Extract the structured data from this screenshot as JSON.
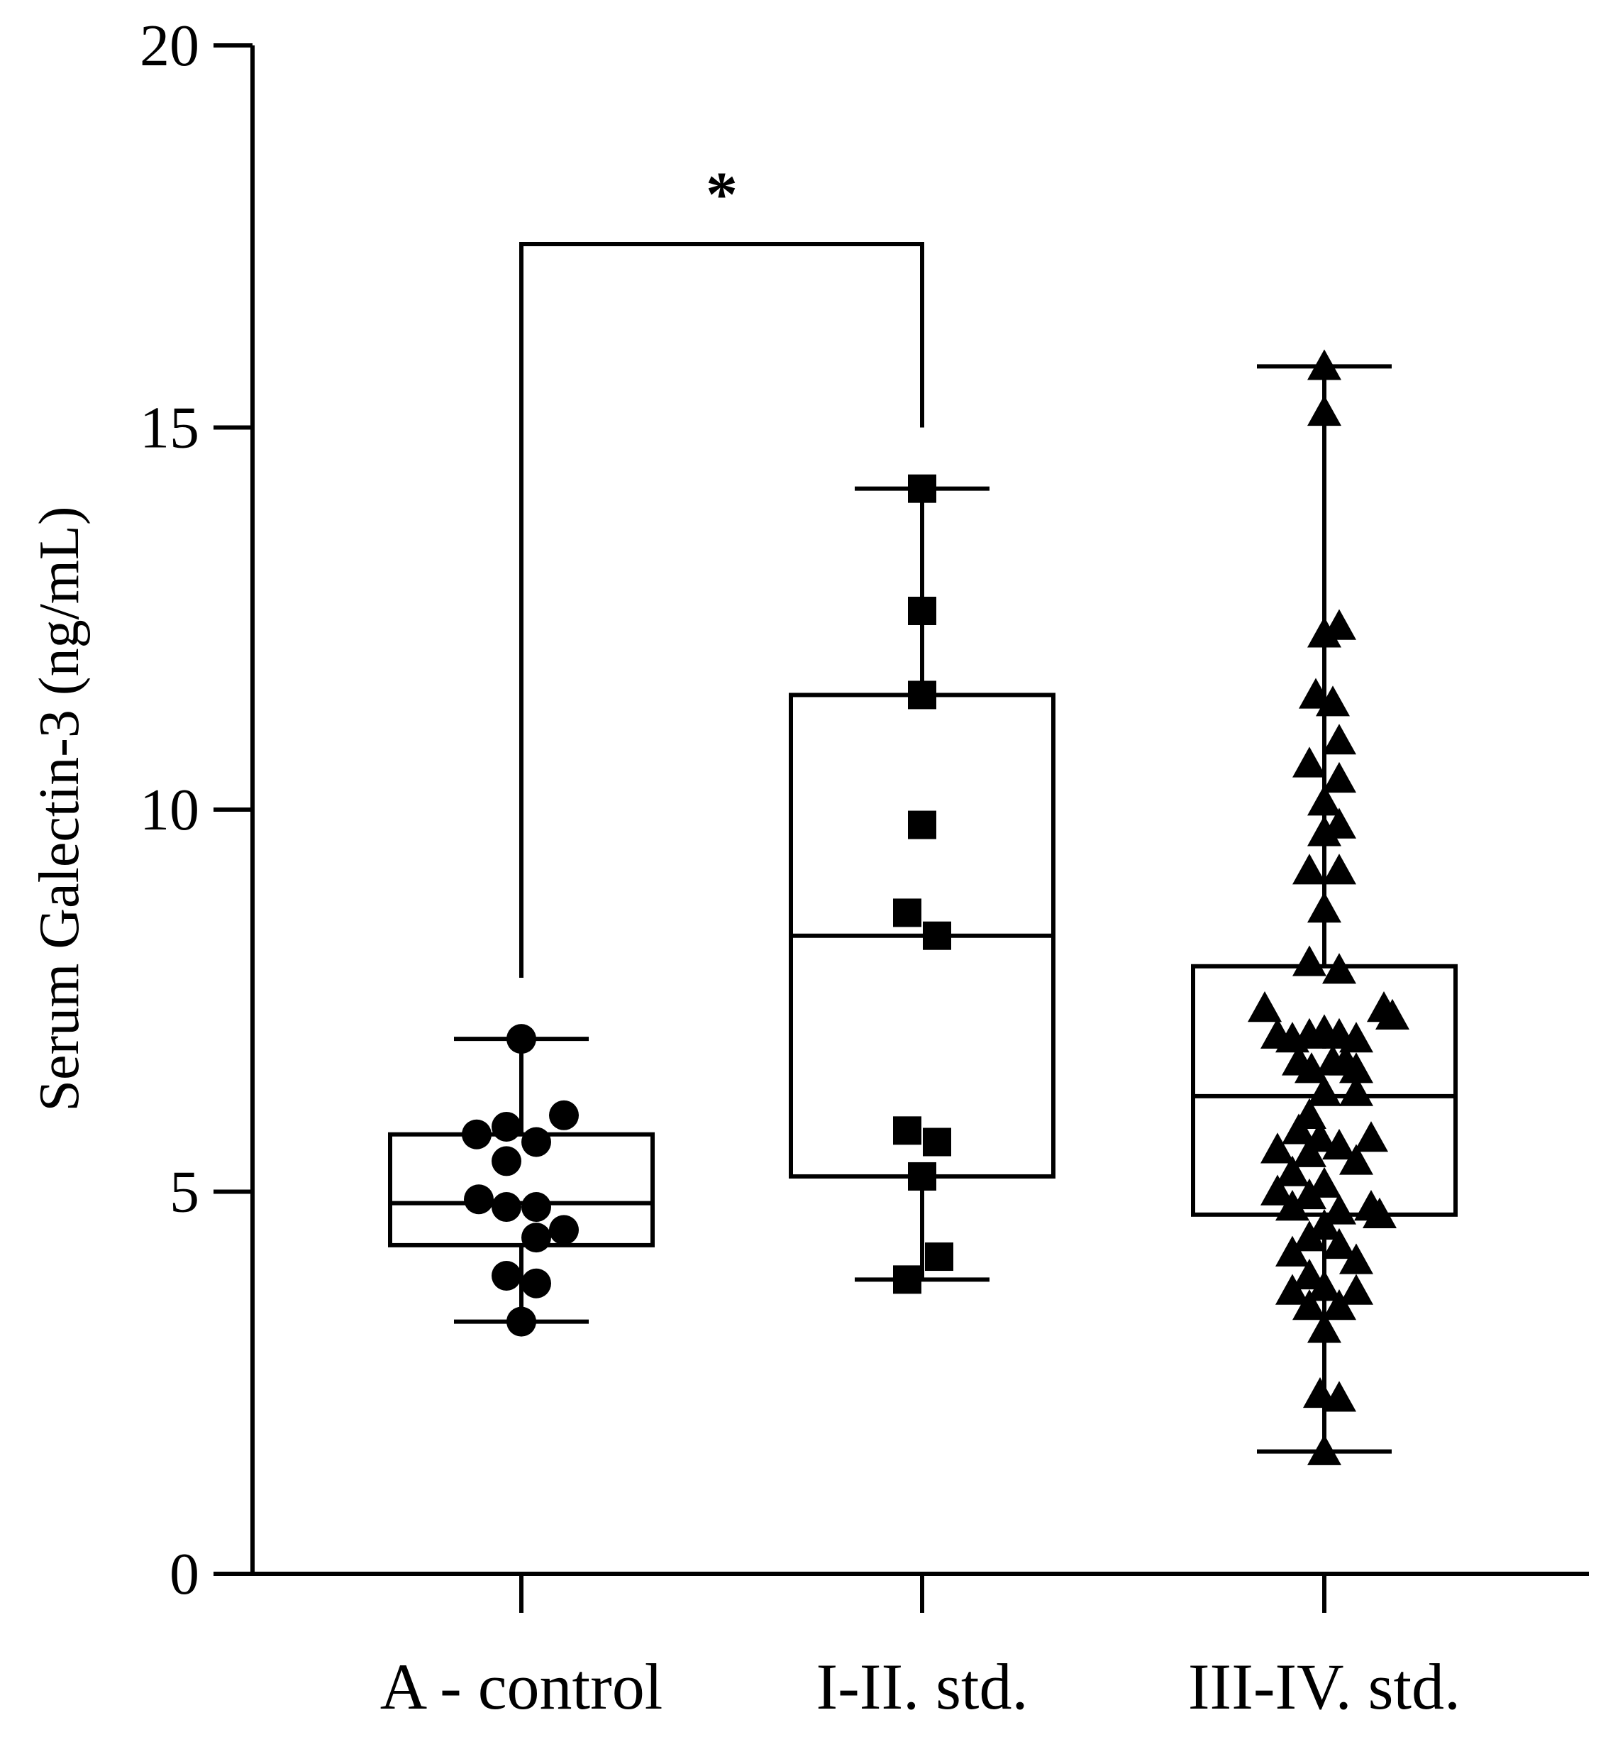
{
  "chart_data": {
    "type": "box",
    "title": "",
    "xlabel": "",
    "ylabel": "Serum Galectin-3 (ng/mL)",
    "ylim": [
      0,
      20
    ],
    "yticks": [
      "0",
      "5",
      "10",
      "15",
      "20"
    ],
    "categories": [
      "A - control",
      "I-II. std.",
      "III-IV. std."
    ],
    "groups": [
      {
        "name": "A - control",
        "marker": "circle",
        "whisker_min": 3.3,
        "q1": 4.3,
        "median": 4.85,
        "q3": 5.75,
        "whisker_max": 7.0,
        "points": [
          {
            "v": 7.0,
            "o": 0
          },
          {
            "v": 6.0,
            "o": 1.0
          },
          {
            "v": 5.75,
            "o": -1.05
          },
          {
            "v": 5.85,
            "o": -0.35
          },
          {
            "v": 5.65,
            "o": 0.35
          },
          {
            "v": 5.4,
            "o": -0.35
          },
          {
            "v": 4.9,
            "o": -1.0
          },
          {
            "v": 4.8,
            "o": -0.35
          },
          {
            "v": 4.8,
            "o": 0.35
          },
          {
            "v": 4.5,
            "o": 1.0
          },
          {
            "v": 4.4,
            "o": 0.35
          },
          {
            "v": 3.9,
            "o": -0.35
          },
          {
            "v": 3.8,
            "o": 0.35
          },
          {
            "v": 3.3,
            "o": 0
          }
        ]
      },
      {
        "name": "I-II. std.",
        "marker": "square",
        "whisker_min": 3.85,
        "q1": 5.2,
        "median": 8.35,
        "q3": 11.5,
        "whisker_max": 14.2,
        "points": [
          {
            "v": 14.2,
            "o": 0
          },
          {
            "v": 12.6,
            "o": 0
          },
          {
            "v": 11.5,
            "o": 0
          },
          {
            "v": 9.8,
            "o": 0
          },
          {
            "v": 8.65,
            "o": -0.35
          },
          {
            "v": 8.35,
            "o": 0.35
          },
          {
            "v": 5.8,
            "o": -0.35
          },
          {
            "v": 5.65,
            "o": 0.35
          },
          {
            "v": 5.2,
            "o": 0
          },
          {
            "v": 4.15,
            "o": 0.4
          },
          {
            "v": 3.85,
            "o": -0.35
          }
        ]
      },
      {
        "name": "III-IV. std.",
        "marker": "triangle",
        "whisker_min": 1.6,
        "q1": 4.7,
        "median": 6.25,
        "q3": 7.95,
        "whisker_max": 15.8,
        "points": [
          {
            "v": 15.8,
            "o": 0
          },
          {
            "v": 15.2,
            "o": 0
          },
          {
            "v": 12.4,
            "o": 0.35
          },
          {
            "v": 12.3,
            "o": 0
          },
          {
            "v": 11.5,
            "o": -0.2
          },
          {
            "v": 11.4,
            "o": 0.2
          },
          {
            "v": 10.9,
            "o": 0.35
          },
          {
            "v": 10.6,
            "o": -0.35
          },
          {
            "v": 10.4,
            "o": 0.35
          },
          {
            "v": 10.1,
            "o": 0
          },
          {
            "v": 9.8,
            "o": 0.35
          },
          {
            "v": 9.7,
            "o": 0
          },
          {
            "v": 9.2,
            "o": -0.35
          },
          {
            "v": 9.2,
            "o": 0.35
          },
          {
            "v": 8.7,
            "o": 0
          },
          {
            "v": 8.0,
            "o": -0.35
          },
          {
            "v": 7.9,
            "o": 0.35
          },
          {
            "v": 7.4,
            "o": -1.4
          },
          {
            "v": 7.4,
            "o": 1.4
          },
          {
            "v": 7.3,
            "o": 1.6
          },
          {
            "v": 7.05,
            "o": -1.1
          },
          {
            "v": 7.0,
            "o": -0.75
          },
          {
            "v": 7.05,
            "o": -0.35
          },
          {
            "v": 7.1,
            "o": 0
          },
          {
            "v": 7.05,
            "o": 0.35
          },
          {
            "v": 7.0,
            "o": 0.75
          },
          {
            "v": 6.7,
            "o": -0.6
          },
          {
            "v": 6.6,
            "o": -0.3
          },
          {
            "v": 6.7,
            "o": 0.2
          },
          {
            "v": 6.7,
            "o": 0.5
          },
          {
            "v": 6.6,
            "o": 0.75
          },
          {
            "v": 6.3,
            "o": 0
          },
          {
            "v": 6.3,
            "o": 0.75
          },
          {
            "v": 6.0,
            "o": -0.35
          },
          {
            "v": 5.8,
            "o": -0.6
          },
          {
            "v": 5.7,
            "o": -0.1
          },
          {
            "v": 5.6,
            "o": 0.35
          },
          {
            "v": 5.7,
            "o": 1.1
          },
          {
            "v": 5.55,
            "o": -1.1
          },
          {
            "v": 5.5,
            "o": -0.35
          },
          {
            "v": 5.4,
            "o": 0.75
          },
          {
            "v": 5.25,
            "o": -0.75
          },
          {
            "v": 5.1,
            "o": 0
          },
          {
            "v": 5.0,
            "o": -1.1
          },
          {
            "v": 4.95,
            "o": -0.35
          },
          {
            "v": 4.8,
            "o": -0.75
          },
          {
            "v": 4.8,
            "o": 1.1
          },
          {
            "v": 4.75,
            "o": 0.35
          },
          {
            "v": 4.7,
            "o": 1.3
          },
          {
            "v": 4.55,
            "o": 0
          },
          {
            "v": 4.4,
            "o": -0.35
          },
          {
            "v": 4.3,
            "o": 0.35
          },
          {
            "v": 4.2,
            "o": -0.75
          },
          {
            "v": 4.1,
            "o": 0.75
          },
          {
            "v": 3.9,
            "o": -0.35
          },
          {
            "v": 3.75,
            "o": 0
          },
          {
            "v": 3.7,
            "o": -0.75
          },
          {
            "v": 3.7,
            "o": 0.75
          },
          {
            "v": 3.5,
            "o": -0.35
          },
          {
            "v": 3.5,
            "o": 0.35
          },
          {
            "v": 3.2,
            "o": 0
          },
          {
            "v": 2.35,
            "o": -0.1
          },
          {
            "v": 2.3,
            "o": 0.35
          },
          {
            "v": 1.6,
            "o": 0
          }
        ]
      }
    ],
    "annotations": [
      {
        "type": "significance_bracket",
        "from": "A - control",
        "to": "I-II. std.",
        "label": "*",
        "y": 17.4,
        "left_end": 7.8,
        "right_end": 15.0
      }
    ]
  }
}
